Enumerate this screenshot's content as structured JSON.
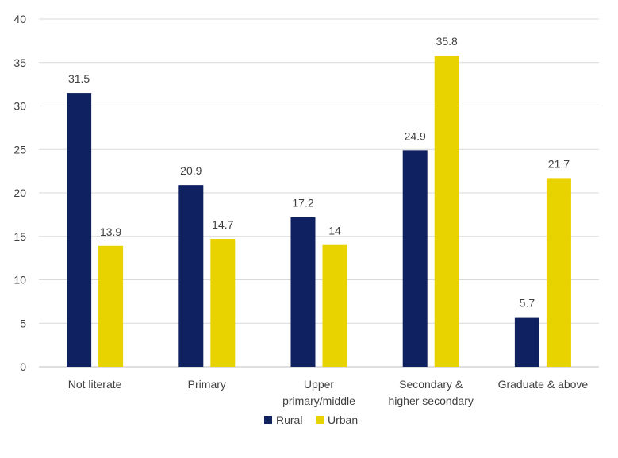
{
  "chart_data": {
    "type": "bar",
    "categories": [
      [
        "Not literate"
      ],
      [
        "Primary"
      ],
      [
        "Upper",
        "primary/middle"
      ],
      [
        "Secondary &",
        "higher secondary"
      ],
      [
        "Graduate & above"
      ]
    ],
    "series": [
      {
        "name": "Rural",
        "color": "#0f2160",
        "values": [
          31.5,
          20.9,
          17.2,
          24.9,
          5.7
        ]
      },
      {
        "name": "Urban",
        "color": "#e8d200",
        "values": [
          13.9,
          14.7,
          14,
          35.8,
          21.7
        ]
      }
    ],
    "ylim": [
      0,
      40
    ],
    "yticks": [
      0,
      5,
      10,
      15,
      20,
      25,
      30,
      35,
      40
    ],
    "grid": true,
    "legend": "bottom-center",
    "title": "",
    "xlabel": "",
    "ylabel": ""
  }
}
